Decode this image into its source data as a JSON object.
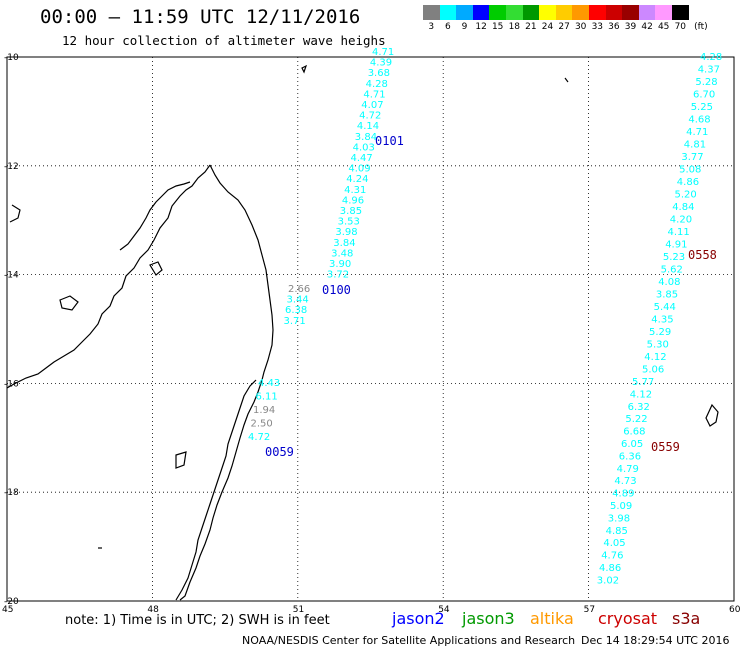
{
  "header": {
    "title": "00:00 – 11:59 UTC 12/11/2016",
    "subtitle": "12 hour collection of altimeter wave heighs"
  },
  "color_scale": {
    "labels": [
      "3",
      "6",
      "9",
      "12",
      "15",
      "18",
      "21",
      "24",
      "27",
      "30",
      "33",
      "36",
      "39",
      "42",
      "45",
      "70",
      "(ft)"
    ],
    "colors": [
      "#808080",
      "#00ffff",
      "#00aaff",
      "#0000ff",
      "#00cc00",
      "#33dd33",
      "#009900",
      "#ffff00",
      "#ffcc00",
      "#ff9900",
      "#ff0000",
      "#cc0000",
      "#990000",
      "#cc88ff",
      "#ff99ff",
      "#000000"
    ]
  },
  "axes": {
    "lat_labels": [
      "-10",
      "-12",
      "-14",
      "-16",
      "-18",
      "-20"
    ],
    "lon_labels": [
      "45",
      "48",
      "51",
      "54",
      "57",
      "60"
    ],
    "lat_values": [
      -10,
      -12,
      -14,
      -16,
      -18,
      -20
    ],
    "lon_values": [
      45,
      48,
      51,
      54,
      57,
      60
    ]
  },
  "tracks": [
    {
      "satellite": "jason2",
      "time_label": "0101",
      "color": "#00ffff",
      "values": [
        "4.71",
        "4.39",
        "3.68",
        "4.28",
        "4.71",
        "4.07",
        "4.72",
        "4.14",
        "3.84",
        "4.03",
        "4.47",
        "4.09",
        "4.24",
        "4.31",
        "4.96",
        "3.85",
        "3.53",
        "3.98",
        "3.84",
        "3.48",
        "3.90",
        "3.72"
      ]
    },
    {
      "satellite": "jason2",
      "time_label": "0100",
      "color": "#00ffff",
      "values": [
        "2.66",
        "3.44",
        "6.38",
        "3.71"
      ]
    },
    {
      "satellite": "jason2",
      "time_label": "0059",
      "color": "#00ffff",
      "values": [
        "4.43",
        "6.11",
        "1.94",
        "2.50",
        "4.72"
      ]
    },
    {
      "satellite": "s3a",
      "time_label": "0558",
      "color": "#00ffff",
      "values": [
        "4.28",
        "4.37",
        "5.28",
        "6.70",
        "5.25",
        "4.68",
        "4.71",
        "4.81",
        "3.77",
        "5.08",
        "4.86",
        "5.20",
        "4.84",
        "4.20",
        "4.11",
        "4.91",
        "5.23",
        "5.62",
        "4.08",
        "3.85",
        "5.44",
        "4.35",
        "5.29",
        "5.30",
        "4.12",
        "5.06"
      ]
    },
    {
      "satellite": "s3a",
      "time_label": "0559",
      "color": "#00ffff",
      "values": [
        "5.77",
        "4.12",
        "6.32",
        "5.22",
        "6.68",
        "6.05",
        "6.36",
        "4.79",
        "4.73",
        "4.89",
        "5.09",
        "3.98",
        "4.85",
        "4.05",
        "4.76",
        "4.86",
        "3.02"
      ]
    }
  ],
  "legend": {
    "note": "note: 1) Time is in UTC; 2) SWH is in feet",
    "items": [
      {
        "name": "jason2",
        "color": "#0000ff"
      },
      {
        "name": "jason3",
        "color": "#009900"
      },
      {
        "name": "altika",
        "color": "#ff9900"
      },
      {
        "name": "cryosat",
        "color": "#cc0000"
      },
      {
        "name": "s3a",
        "color": "#880000"
      }
    ]
  },
  "credit": {
    "left": "NOAA/NESDIS Center for Satellite Applications and Research",
    "right": "Dec 14 18:29:54 UTC 2016"
  }
}
